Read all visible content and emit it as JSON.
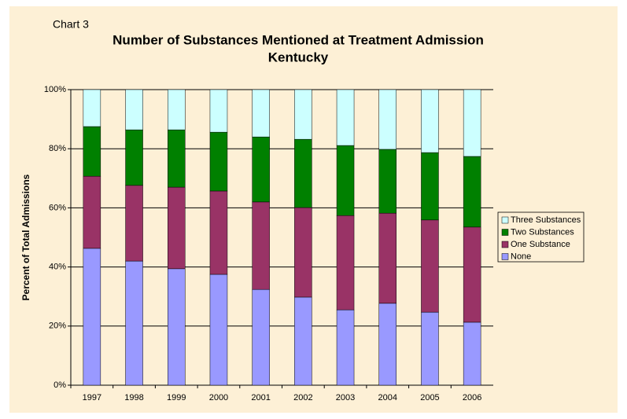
{
  "chart_data": {
    "type": "stacked_bar",
    "label": "Chart 3",
    "title": "Number of Substances Mentioned at Treatment Admission",
    "subtitle": "Kentucky",
    "y_label": "Percent of Total Admissions",
    "categories": [
      "1997",
      "1998",
      "1999",
      "2000",
      "2001",
      "2002",
      "2003",
      "2004",
      "2005",
      "2006"
    ],
    "series": [
      {
        "name": "None",
        "color": "#9999ff",
        "values": [
          46.3,
          42.0,
          39.4,
          37.5,
          32.4,
          29.8,
          25.5,
          27.7,
          24.7,
          21.3
        ]
      },
      {
        "name": "One Substance",
        "color": "#993366",
        "values": [
          24.4,
          25.6,
          27.6,
          28.2,
          29.6,
          30.3,
          31.9,
          30.5,
          31.2,
          32.2
        ]
      },
      {
        "name": "Two Substances",
        "color": "#008000",
        "values": [
          16.8,
          18.8,
          19.4,
          19.9,
          22.0,
          23.1,
          23.7,
          21.6,
          22.8,
          23.9
        ]
      },
      {
        "name": "Three Substances",
        "color": "#ccffff",
        "values": [
          12.5,
          13.6,
          13.6,
          14.4,
          16.0,
          16.8,
          18.9,
          20.2,
          21.3,
          22.6
        ]
      }
    ],
    "ylim": [
      0,
      100
    ],
    "yticks": [
      {
        "value": 0,
        "label": "0%"
      },
      {
        "value": 20,
        "label": "20%"
      },
      {
        "value": 40,
        "label": "40%"
      },
      {
        "value": 60,
        "label": "60%"
      },
      {
        "value": 80,
        "label": "80%"
      },
      {
        "value": 100,
        "label": "100%"
      }
    ],
    "grid": true,
    "legend": "right"
  }
}
